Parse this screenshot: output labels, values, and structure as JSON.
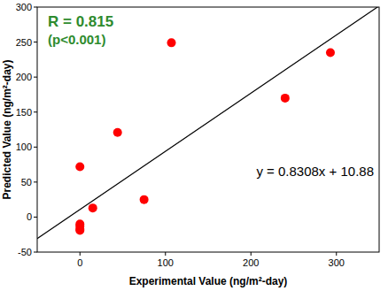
{
  "chart_data": {
    "type": "scatter",
    "x_label": "Experimental Value (ng/m²-day)",
    "y_label": "Predicted Value (ng/m²-day)",
    "x": [
      0,
      0,
      0,
      0,
      0,
      15,
      44,
      75,
      107,
      240,
      293
    ],
    "values": [
      72,
      -10,
      -13,
      -17,
      -19,
      13,
      121,
      25,
      249,
      170,
      235
    ],
    "color": "#ff0000",
    "marker": "circle",
    "xlim": [
      -50,
      350
    ],
    "xticks": [
      0,
      100,
      200,
      300
    ],
    "ylim": [
      -50,
      300
    ],
    "yticks": [
      -50,
      0,
      50,
      100,
      150,
      200,
      250,
      300
    ],
    "grid": false,
    "trendline": {
      "slope": 0.8308,
      "intercept": 10.88,
      "color": "#000000"
    },
    "annotations": [
      {
        "text": "R = 0.815",
        "color": "#2e8b2e"
      },
      {
        "text": "(p<0.001)",
        "color": "#2e8b2e"
      },
      {
        "text": "y = 0.8308x + 10.88",
        "color": "#000000"
      }
    ]
  }
}
